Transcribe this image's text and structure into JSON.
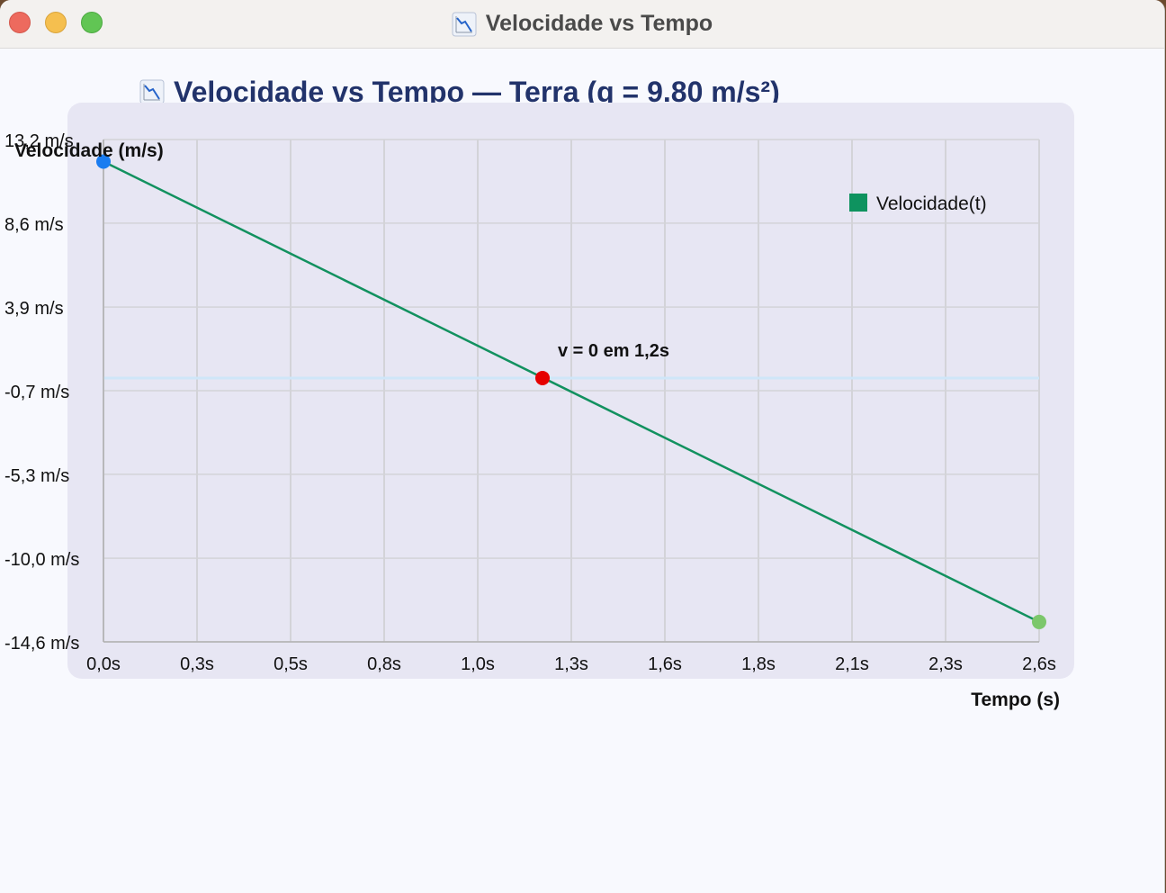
{
  "window": {
    "title": "Velocidade vs Tempo",
    "chart_icon": "chart-down-icon"
  },
  "header": {
    "title": "Velocidade vs Tempo — Terra (g = 9.80 m/s²)"
  },
  "colors": {
    "line": "#12915f",
    "zero_line": "#cfe6f8",
    "start_point": "#1a7cf0",
    "zero_point": "#e60000",
    "end_point": "#7cc76b",
    "plot_bg": "#e7e6f3",
    "grid": "#d3d3d8",
    "legend_swatch": "#0e935f"
  },
  "chart_data": {
    "type": "line",
    "title": "Velocidade vs Tempo — Terra (g = 9.80 m/s²)",
    "xlabel": "Tempo (s)",
    "ylabel": "Velocidade (m/s)",
    "xlim": [
      0,
      2.6
    ],
    "ylim": [
      -14.6,
      13.2
    ],
    "x_ticks": [
      0,
      0.26,
      0.52,
      0.78,
      1.04,
      1.3,
      1.56,
      1.82,
      2.08,
      2.34,
      2.6
    ],
    "x_tick_labels": [
      "0,0s",
      "0,3s",
      "0,5s",
      "0,8s",
      "1,0s",
      "1,3s",
      "1,6s",
      "1,8s",
      "2,1s",
      "2,3s",
      "2,6s"
    ],
    "y_ticks": [
      13.2,
      8.57,
      3.93,
      -0.7,
      -5.33,
      -9.97,
      -14.6
    ],
    "y_tick_labels": [
      "13,2 m/s",
      "8,6 m/s",
      "3,9 m/s",
      "-0,7 m/s",
      "-5,3 m/s",
      "-10,0 m/s",
      "-14,6 m/s"
    ],
    "grid": true,
    "legend": {
      "position": "top-right",
      "entries": [
        "Velocidade(t)"
      ]
    },
    "series": [
      {
        "name": "Velocidade(t)",
        "x": [
          0,
          2.6
        ],
        "y": [
          11.98,
          -13.5
        ]
      }
    ],
    "reference_line": {
      "y": 0
    },
    "points": [
      {
        "x": 0,
        "y": 11.98,
        "role": "start"
      },
      {
        "x": 1.22,
        "y": 0,
        "role": "zero"
      },
      {
        "x": 2.6,
        "y": -13.5,
        "role": "end"
      }
    ],
    "annotation": {
      "text": "v = 0 em 1,2s",
      "x": 1.22,
      "y": 0
    }
  }
}
